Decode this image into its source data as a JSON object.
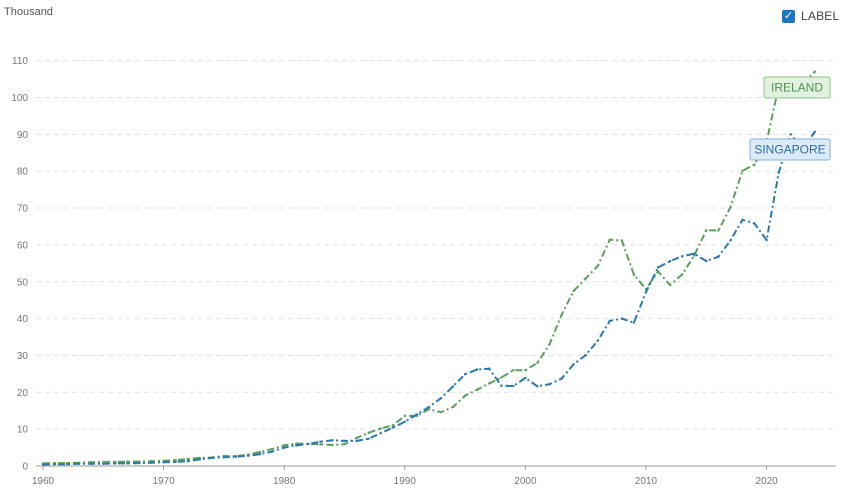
{
  "unit": "Thousand",
  "toggle": {
    "label": "LABEL",
    "checked": true,
    "check_icon": "checkmark-icon"
  },
  "colors": {
    "ireland": "#5aa05a",
    "singapore": "#2a78b0"
  },
  "chart_data": {
    "type": "line",
    "title": "",
    "xlabel": "",
    "ylabel": "Thousand",
    "xlim": [
      1960,
      2024
    ],
    "ylim": [
      0,
      115
    ],
    "x_ticks": [
      1960,
      1970,
      1980,
      1990,
      2000,
      2010,
      2020
    ],
    "y_ticks": [
      0,
      10,
      20,
      30,
      40,
      50,
      60,
      70,
      80,
      90,
      100,
      110
    ],
    "grid": true,
    "legend": "none",
    "annotations": [
      "IRELAND",
      "SINGAPORE"
    ],
    "x": [
      1960,
      1961,
      1962,
      1963,
      1964,
      1965,
      1966,
      1967,
      1968,
      1969,
      1970,
      1971,
      1972,
      1973,
      1974,
      1975,
      1976,
      1977,
      1978,
      1979,
      1980,
      1981,
      1982,
      1983,
      1984,
      1985,
      1986,
      1987,
      1988,
      1989,
      1990,
      1991,
      1992,
      1993,
      1994,
      1995,
      1996,
      1997,
      1998,
      1999,
      2000,
      2001,
      2002,
      2003,
      2004,
      2005,
      2006,
      2007,
      2008,
      2009,
      2010,
      2011,
      2012,
      2013,
      2014,
      2015,
      2016,
      2017,
      2018,
      2019,
      2020,
      2021,
      2022,
      2023,
      2024
    ],
    "series": [
      {
        "name": "IRELAND",
        "color": "#5aa05a",
        "values": [
          0.7,
          0.8,
          0.8,
          0.9,
          1.0,
          1.1,
          1.1,
          1.2,
          1.2,
          1.3,
          1.4,
          1.6,
          1.9,
          2.2,
          2.3,
          2.7,
          2.7,
          3.1,
          3.8,
          4.6,
          5.6,
          6.1,
          6.0,
          5.9,
          5.7,
          5.9,
          7.6,
          9.0,
          10.2,
          11.0,
          13.6,
          13.6,
          15.4,
          14.6,
          16.0,
          19.1,
          20.7,
          22.4,
          24.0,
          26.0,
          26.0,
          28.0,
          33.0,
          41.0,
          47.5,
          50.9,
          54.3,
          61.4,
          61.2,
          51.9,
          48.0,
          52.8,
          49.1,
          52.0,
          57.1,
          64.0,
          63.9,
          70.2,
          80.1,
          81.8,
          88.0,
          103.0,
          104.0,
          103.5,
          107.0
        ]
      },
      {
        "name": "SINGAPORE",
        "color": "#2a78b0",
        "values": [
          0.4,
          0.5,
          0.5,
          0.6,
          0.6,
          0.6,
          0.7,
          0.7,
          0.8,
          0.9,
          1.0,
          1.1,
          1.3,
          1.8,
          2.2,
          2.4,
          2.5,
          2.8,
          3.2,
          3.9,
          5.0,
          5.6,
          6.0,
          6.6,
          7.0,
          6.8,
          6.8,
          7.4,
          8.9,
          10.4,
          12.0,
          14.0,
          16.0,
          18.4,
          21.6,
          24.9,
          26.2,
          26.4,
          21.8,
          21.7,
          23.9,
          21.6,
          22.2,
          23.7,
          27.6,
          30.1,
          34.0,
          39.4,
          40.0,
          38.9,
          47.2,
          53.9,
          55.6,
          56.9,
          57.6,
          55.6,
          56.8,
          61.2,
          66.8,
          65.8,
          61.3,
          79.6,
          90.0,
          86.0,
          90.7
        ]
      }
    ]
  }
}
